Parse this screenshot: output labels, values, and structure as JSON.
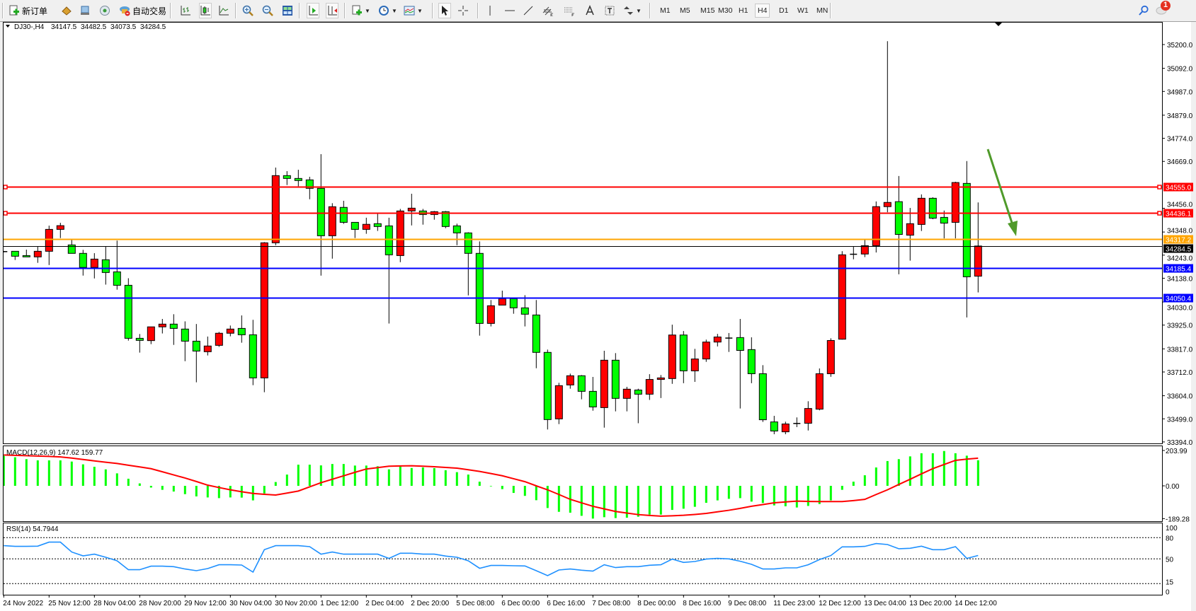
{
  "toolbar": {
    "new_order_label": "新订单",
    "auto_trading_label": "自动交易",
    "timeframes": [
      "M1",
      "M5",
      "M15",
      "M30",
      "H1",
      "H4",
      "D1",
      "W1",
      "MN"
    ],
    "active_timeframe": "H4",
    "notification_count": "1",
    "icons": [
      "new-order-icon",
      "market-watch-icon",
      "navigator-icon",
      "signals-icon",
      "auto-trading-icon",
      "bar-chart-icon",
      "candlestick-icon",
      "line-chart-icon",
      "zoom-in-icon",
      "zoom-out-icon",
      "tile-windows-icon",
      "auto-scroll-icon",
      "chart-shift-icon",
      "new-chart-icon",
      "periods-icon",
      "indicators-icon",
      "cursor-icon",
      "crosshair-icon",
      "vertical-line-icon",
      "horizontal-line-icon",
      "trend-line-icon",
      "equidistant-channel-icon",
      "fibonacci-icon",
      "text-icon",
      "text-label-icon",
      "arrows-icon",
      "search-icon",
      "notification-icon"
    ]
  },
  "chart": {
    "symbol": "DJ30-,H4",
    "open": "34147.5",
    "high": "34482.5",
    "low": "34073.5",
    "close": "34284.5",
    "colors": {
      "bull": "#ff0000",
      "bear": "#00ff00",
      "wick": "#000000",
      "background": "#ffffff"
    },
    "annotation_arrow_color": "#4f9a2a"
  },
  "chart_data": [
    {
      "type": "candlestick",
      "title": "DJ30-,H4",
      "ylim": [
        33394.0,
        35200.0
      ],
      "price_ticks": [
        "35200.0",
        "35092.0",
        "34987.0",
        "34879.0",
        "34774.0",
        "34669.0",
        "34456.0",
        "34348.0",
        "34243.0",
        "34138.0",
        "34030.0",
        "33925.0",
        "33817.0",
        "33712.0",
        "33604.0",
        "33499.0",
        "33394.0"
      ],
      "time_labels": [
        {
          "bar": 0,
          "text": "24 Nov 2022"
        },
        {
          "bar": 4,
          "text": "25 Nov 12:00"
        },
        {
          "bar": 8,
          "text": "28 Nov 04:00"
        },
        {
          "bar": 12,
          "text": "28 Nov 20:00"
        },
        {
          "bar": 16,
          "text": "29 Nov 12:00"
        },
        {
          "bar": 20,
          "text": "30 Nov 04:00"
        },
        {
          "bar": 24,
          "text": "30 Nov 20:00"
        },
        {
          "bar": 28,
          "text": "1 Dec 12:00"
        },
        {
          "bar": 32,
          "text": "2 Dec 04:00"
        },
        {
          "bar": 36,
          "text": "2 Dec 20:00"
        },
        {
          "bar": 40,
          "text": "5 Dec 08:00"
        },
        {
          "bar": 44,
          "text": "6 Dec 00:00"
        },
        {
          "bar": 48,
          "text": "6 Dec 16:00"
        },
        {
          "bar": 52,
          "text": "7 Dec 08:00"
        },
        {
          "bar": 56,
          "text": "8 Dec 00:00"
        },
        {
          "bar": 60,
          "text": "8 Dec 16:00"
        },
        {
          "bar": 64,
          "text": "9 Dec 08:00"
        },
        {
          "bar": 68,
          "text": "11 Dec 23:00"
        },
        {
          "bar": 72,
          "text": "12 Dec 12:00"
        },
        {
          "bar": 76,
          "text": "13 Dec 04:00"
        },
        {
          "bar": 80,
          "text": "13 Dec 20:00"
        },
        {
          "bar": 84,
          "text": "14 Dec 12:00"
        }
      ],
      "ohlc": [
        [
          34259,
          34262,
          34256,
          34259
        ],
        [
          34260.5,
          34260.5,
          34221,
          34238
        ],
        [
          34241,
          34268,
          34235,
          34235
        ],
        [
          34235,
          34281,
          34208,
          34260.5
        ],
        [
          34260.5,
          34377,
          34198,
          34360
        ],
        [
          34360,
          34390,
          34320.5,
          34377
        ],
        [
          34289.4,
          34313,
          34251,
          34251
        ],
        [
          34251,
          34267,
          34150,
          34187
        ],
        [
          34187,
          34252,
          34137,
          34225
        ],
        [
          34222,
          34282,
          34109,
          34164
        ],
        [
          34167,
          34309,
          34086,
          34106
        ],
        [
          34106,
          34138,
          33854.5,
          33865
        ],
        [
          33865,
          33884.5,
          33800,
          33855.5
        ],
        [
          33854.5,
          33917,
          33838.5,
          33917
        ],
        [
          33917,
          33953,
          33887,
          33929.5
        ],
        [
          33929.5,
          33974.5,
          33835,
          33910
        ],
        [
          33907,
          33942,
          33761,
          33852
        ],
        [
          33852,
          33930,
          33665,
          33807
        ],
        [
          33804,
          33873,
          33787,
          33830
        ],
        [
          33833,
          33894,
          33826,
          33888
        ],
        [
          33888,
          33923,
          33874,
          33907
        ],
        [
          33910,
          33969,
          33845,
          33881
        ],
        [
          33881,
          33949,
          33652,
          33685
        ],
        [
          33685,
          34302,
          33620,
          34299
        ],
        [
          34299,
          34641,
          34288,
          34604.4
        ],
        [
          34604.4,
          34624.7,
          34561.5,
          34591.5
        ],
        [
          34591.5,
          34631,
          34556,
          34582
        ],
        [
          34585,
          34599,
          34497,
          34546.5
        ],
        [
          34546.5,
          34702,
          34150,
          34331
        ],
        [
          34331,
          34479,
          34227,
          34463
        ],
        [
          34460,
          34490,
          34385,
          34392
        ],
        [
          34392,
          34392,
          34320.5,
          34360
        ],
        [
          34360,
          34413,
          34340,
          34383
        ],
        [
          34386,
          34433,
          34353,
          34373
        ],
        [
          34376,
          34413,
          33932,
          34244.4
        ],
        [
          34241,
          34453,
          34211,
          34443.7
        ],
        [
          34443.7,
          34522,
          34378,
          34456.5
        ],
        [
          34443.7,
          34453,
          34381.5,
          34427.6
        ],
        [
          34427.6,
          34443.7,
          34404,
          34440.5
        ],
        [
          34440.5,
          34443.7,
          34365.5,
          34373
        ],
        [
          34376,
          34386,
          34288,
          34344
        ],
        [
          34344,
          34347,
          34060,
          34251
        ],
        [
          34251,
          34305.5,
          33877,
          33932.6
        ],
        [
          33932.6,
          34039,
          33919,
          34013
        ],
        [
          34016,
          34081.6,
          34016,
          34045
        ],
        [
          34045,
          34045,
          33976.6,
          34003.4
        ],
        [
          34003.4,
          34061,
          33919,
          33974.5
        ],
        [
          33971,
          34039,
          33729,
          33801
        ],
        [
          33801,
          33813.7,
          33450.6,
          33495.6
        ],
        [
          33498.8,
          33662.7,
          33475,
          33649.8
        ],
        [
          33653,
          33704.5,
          33636,
          33694.8
        ],
        [
          33694.8,
          33698,
          33587.7,
          33624
        ],
        [
          33624,
          33689.5,
          33536,
          33553
        ],
        [
          33550,
          33808.4,
          33459,
          33765.5
        ],
        [
          33765.5,
          33797.7,
          33533,
          33592
        ],
        [
          33592,
          33644.5,
          33533,
          33633.8
        ],
        [
          33630,
          33636,
          33479,
          33611
        ],
        [
          33611,
          33702,
          33585,
          33678
        ],
        [
          33678,
          33698,
          33593.5,
          33685
        ],
        [
          33682,
          33927,
          33658,
          33880
        ],
        [
          33880,
          33898,
          33661,
          33717
        ],
        [
          33717,
          33817,
          33667,
          33771
        ],
        [
          33771,
          33859,
          33758,
          33848
        ],
        [
          33848,
          33885,
          33828,
          33871
        ],
        [
          33866,
          33889,
          33803,
          33866
        ],
        [
          33868.4,
          33953,
          33546,
          33810
        ],
        [
          33813.7,
          33869.6,
          33661,
          33704
        ],
        [
          33704,
          33743,
          33485,
          33494.8
        ],
        [
          33485,
          33512.6,
          33429,
          33443.6
        ],
        [
          33440,
          33486,
          33429,
          33475.7
        ],
        [
          33478,
          33505.5,
          33461.4,
          33478
        ],
        [
          33479,
          33579,
          33446,
          33546
        ],
        [
          33543,
          33728,
          33537.6,
          33704
        ],
        [
          33704,
          33865,
          33690,
          33855
        ],
        [
          33861,
          34261,
          33859,
          34244.5
        ],
        [
          34247,
          34282.5,
          34224,
          34247
        ],
        [
          34248,
          34316,
          34234,
          34286
        ],
        [
          34286,
          34487,
          34255,
          34463.4
        ],
        [
          34463.4,
          35215.5,
          34438,
          34482.5
        ],
        [
          34486,
          34602.6,
          34156,
          34337
        ],
        [
          34333.7,
          34457.5,
          34218,
          34386
        ],
        [
          34382.5,
          34519,
          34352.7,
          34501.5
        ],
        [
          34501.5,
          34506,
          34406,
          34411
        ],
        [
          34414.6,
          34445.6,
          34319,
          34388.5
        ],
        [
          34392,
          34576.5,
          34319,
          34573
        ],
        [
          34569,
          34670.5,
          33960,
          34144.5
        ],
        [
          34147.5,
          34482.5,
          34073.5,
          34284.5
        ]
      ],
      "horizontal_lines": [
        {
          "price": "34555.0",
          "color": "#ff0000",
          "handles": true
        },
        {
          "price": "34436.1",
          "color": "#ff0000",
          "handles": true
        },
        {
          "price": "34317.2",
          "color": "#ffa500",
          "handles": false
        },
        {
          "price": "34284.5",
          "color": "#000000",
          "handles": false,
          "role": "bid"
        },
        {
          "price": "34185.4",
          "color": "#0000ff",
          "handles": false
        },
        {
          "price": "34050.4",
          "color": "#0000ff",
          "handles": false
        }
      ]
    },
    {
      "type": "bar",
      "title": "MACD(12,26,9) 147.62 159.77",
      "ylim": [
        -189.28,
        203.99
      ],
      "tick_labels": [
        "203.99",
        "0.00",
        "-189.28"
      ],
      "histogram_color": "#00ff00",
      "signal_color": "#ff0000",
      "histogram": [
        174,
        165,
        154,
        147,
        147,
        147,
        140,
        124,
        110,
        95,
        72,
        41,
        14,
        -10,
        -23,
        -33,
        -48,
        -61,
        -67,
        -71,
        -67,
        -68,
        -84,
        -44,
        22,
        65,
        122,
        122,
        118,
        126,
        126,
        117,
        117,
        113,
        95,
        113,
        103,
        106,
        102,
        90,
        79,
        65,
        24,
        -3,
        -19,
        -41,
        -58,
        -83,
        -128,
        -150,
        -155,
        -173,
        -189,
        -181,
        -186,
        -184,
        -178,
        -166,
        -166,
        -139,
        -132,
        -121,
        -98,
        -84,
        -75,
        -71,
        -91,
        -99,
        -113,
        -118,
        -125,
        -116,
        -105,
        -84,
        -23,
        24,
        61,
        106,
        143,
        154,
        170,
        188,
        188,
        201,
        188,
        174,
        147.62
      ],
      "signal": [
        178,
        176,
        174,
        172,
        170,
        167,
        160,
        152,
        144,
        136,
        129,
        119,
        109,
        99,
        81,
        63,
        45,
        25,
        4,
        -10,
        -23,
        -34,
        -44,
        -49,
        -53,
        -42,
        -30,
        -6,
        18,
        38,
        58,
        78,
        97,
        105,
        113,
        115,
        116,
        113,
        110,
        106,
        102,
        93,
        83,
        71,
        58,
        41,
        24,
        0,
        -23,
        -50,
        -78,
        -98,
        -118,
        -133,
        -148,
        -157,
        -166,
        -171,
        -175,
        -173,
        -170,
        -165,
        -159,
        -150,
        -141,
        -130,
        -118,
        -108,
        -98,
        -93,
        -88,
        -90,
        -91,
        -91,
        -91,
        -85,
        -78,
        -50,
        -23,
        8,
        38,
        69,
        99,
        123,
        147,
        154,
        159.77
      ]
    },
    {
      "type": "line",
      "title": "RSI(14) 54.7944",
      "ylim": [
        0,
        100
      ],
      "tick_labels": [
        "100",
        "80",
        "50",
        "15",
        "0"
      ],
      "levels": [
        80,
        50,
        15
      ],
      "line_color": "#1e90ff",
      "values": [
        68.7,
        67.7,
        67.7,
        68,
        73.7,
        73.7,
        59.7,
        54.3,
        56.7,
        52.3,
        47.3,
        34.7,
        34.7,
        39.7,
        39.7,
        39,
        35.7,
        33.3,
        36.3,
        41.7,
        41.7,
        41.3,
        31.3,
        63,
        68.7,
        68.7,
        68.7,
        67.3,
        56.7,
        59.7,
        56.7,
        56.7,
        56.7,
        56.7,
        50.7,
        58,
        58,
        56.7,
        56.7,
        54,
        52.3,
        47.3,
        36.7,
        40.7,
        40.7,
        40.3,
        40,
        33.3,
        26.3,
        34.3,
        35.7,
        34,
        32.7,
        41.7,
        37.7,
        39,
        39,
        41,
        41.7,
        49.7,
        45,
        46.3,
        49.7,
        50.7,
        50,
        46.7,
        42.3,
        35.7,
        35.7,
        37.3,
        37.3,
        41.7,
        49,
        54.7,
        67,
        67,
        67.7,
        71.7,
        70.3,
        64.3,
        65,
        68,
        63,
        63,
        67.3,
        50.7,
        54.7944
      ]
    }
  ]
}
